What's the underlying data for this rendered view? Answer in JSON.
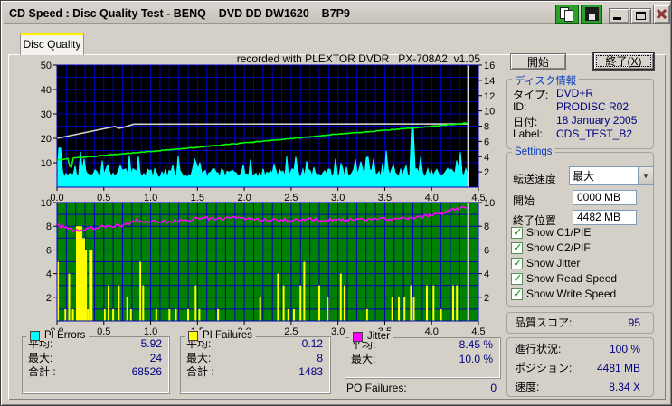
{
  "window": {
    "title": "CD Speed : Disc Quality Test - BENQ    DVD DD DW1620    B7P9",
    "icons": {
      "copy": "copy-pages-icon",
      "save": "floppy-save-icon",
      "minimize": "minimize-icon",
      "maximize": "maximize-icon",
      "close": "close-x-icon"
    }
  },
  "tab": {
    "label": "Disc Quality"
  },
  "buttons": {
    "start": "開始",
    "exit_pre": "終了(",
    "exit_key": "X",
    "exit_post": ")"
  },
  "disc_info": {
    "title": "ディスク情報",
    "rows": [
      {
        "label": "タイプ:",
        "value": "DVD+R"
      },
      {
        "label": "ID:",
        "value": "PRODISC R02"
      },
      {
        "label": "日付:",
        "value": "18 January 2005"
      },
      {
        "label": "Label:",
        "value": "CDS_TEST_B2"
      }
    ]
  },
  "settings": {
    "title": "Settings",
    "speed_label": "転送速度",
    "speed_value": "最大",
    "start_label": "開始",
    "start_value": "0000 MB",
    "end_label": "終了位置",
    "end_value": "4482 MB",
    "checkboxes": [
      {
        "label": "Show C1/PIE",
        "checked": true
      },
      {
        "label": "Show C2/PIF",
        "checked": true
      },
      {
        "label": "Show Jitter",
        "checked": true
      },
      {
        "label": "Show Read Speed",
        "checked": true
      },
      {
        "label": "Show Write Speed",
        "checked": true
      }
    ]
  },
  "quality": {
    "label": "品質スコア:",
    "value": "95"
  },
  "progress": {
    "rows": [
      {
        "label": "進行状況:",
        "value": "100 %"
      },
      {
        "label": "ポジション:",
        "value": "4481 MB"
      },
      {
        "label": "速度:",
        "value": "8.34 X"
      }
    ]
  },
  "stats": {
    "pi_errors": {
      "title": "PI Errors",
      "color": "#00FFFF",
      "rows": [
        [
          "平均:",
          "5.92"
        ],
        [
          "最大:",
          "24"
        ],
        [
          "合計 :",
          "68526"
        ]
      ]
    },
    "pi_failures": {
      "title": "PI Failures",
      "color": "#FFFF00",
      "rows": [
        [
          "平均:",
          "0.12"
        ],
        [
          "最大:",
          "8"
        ],
        [
          "合計 :",
          "1483"
        ]
      ]
    },
    "jitter": {
      "title": "Jitter",
      "color": "#FF00FF",
      "rows": [
        [
          "平均:",
          "8.45 %"
        ],
        [
          "最大:",
          "10.0 %"
        ]
      ]
    },
    "po_failures": {
      "label": "PO Failures:",
      "value": "0"
    }
  },
  "chart_data": [
    {
      "type": "area",
      "note": "recorded with PLEXTOR DVDR   PX-708A2  v1.05",
      "x": {
        "min": 0,
        "max": 4.5,
        "ticks": [
          "0.0",
          "0.5",
          "1.0",
          "1.5",
          "2.0",
          "2.5",
          "3.0",
          "3.5",
          "4.0",
          "4.5"
        ]
      },
      "y_left": {
        "min": 0,
        "max": 50,
        "ticks": [
          50,
          40,
          30,
          20,
          10
        ]
      },
      "y_right": {
        "min": 0,
        "max": 16,
        "ticks": [
          16,
          14,
          12,
          10,
          8,
          6,
          4,
          2
        ]
      },
      "bg_color": "#000000",
      "grid_color": "#0000BE",
      "position_marker_gb": 4.39,
      "marker_color": "#D8D8D8",
      "series": [
        {
          "name": "PI Errors",
          "style": "area",
          "color": "#00FFFF",
          "avg": 5.92,
          "max": 24,
          "base_range": [
            4.0,
            7.6
          ],
          "spikes": [
            [
              0.03,
              16
            ],
            [
              3.79,
              24
            ]
          ]
        },
        {
          "name": "Write Speed",
          "style": "line",
          "color": "#D0CFC8",
          "points": [
            [
              0,
              20
            ],
            [
              0.62,
              24.9
            ],
            [
              0.66,
              24.1
            ],
            [
              0.7,
              24.4
            ],
            [
              0.82,
              25.8
            ],
            [
              4.39,
              25.9
            ]
          ]
        },
        {
          "name": "Read Speed",
          "style": "line",
          "color": "#00FF00",
          "noise": 0.3,
          "points": [
            [
              0,
              11.2
            ],
            [
              0.1,
              11.5
            ],
            [
              0.13,
              11.8
            ],
            [
              0.145,
              2.2
            ],
            [
              0.16,
              11.9
            ],
            [
              1.0,
              14.6
            ],
            [
              2.0,
              18.1
            ],
            [
              3.0,
              21.7
            ],
            [
              4.0,
              24.9
            ],
            [
              4.39,
              26.3
            ]
          ]
        }
      ]
    },
    {
      "type": "bar",
      "x": {
        "min": 0,
        "max": 4.5,
        "ticks": [
          "0.0",
          "0.5",
          "1.0",
          "1.5",
          "2.0",
          "2.5",
          "3.0",
          "3.5",
          "4.0",
          "4.5"
        ]
      },
      "y_left": {
        "min": 0,
        "max": 10,
        "ticks": [
          10,
          8,
          6,
          4,
          2
        ]
      },
      "y_right": {
        "min": 0,
        "max": 10,
        "ticks": [
          10,
          8,
          6,
          4,
          2
        ]
      },
      "bg_color": "#008200",
      "grid_color": "#0000BE",
      "position_marker_gb": 4.39,
      "marker_color": "#C8C8C8",
      "bars": {
        "name": "PI Failures",
        "color": "#FFFF00",
        "avg": 0.12,
        "max": 8,
        "data": [
          [
            0.01,
            5
          ],
          [
            0.09,
            1
          ],
          [
            0.13,
            4
          ],
          [
            0.17,
            1
          ],
          [
            0.22,
            8
          ],
          [
            0.25,
            8
          ],
          [
            0.28,
            7
          ],
          [
            0.3,
            6
          ],
          [
            0.33,
            1
          ],
          [
            0.36,
            6
          ],
          [
            0.51,
            1
          ],
          [
            0.55,
            3
          ],
          [
            0.6,
            1
          ],
          [
            0.66,
            3
          ],
          [
            0.75,
            2
          ],
          [
            0.79,
            1
          ],
          [
            0.89,
            5
          ],
          [
            0.92,
            3
          ],
          [
            1.06,
            1
          ],
          [
            1.2,
            1
          ],
          [
            1.27,
            1
          ],
          [
            1.4,
            1
          ],
          [
            1.48,
            3
          ],
          [
            1.52,
            1
          ],
          [
            1.72,
            1
          ],
          [
            2.17,
            2
          ],
          [
            2.36,
            4
          ],
          [
            2.42,
            3
          ],
          [
            2.47,
            1
          ],
          [
            2.53,
            1
          ],
          [
            2.6,
            3
          ],
          [
            2.64,
            5
          ],
          [
            2.8,
            3
          ],
          [
            2.89,
            2
          ],
          [
            3.03,
            4
          ],
          [
            3.07,
            3
          ],
          [
            3.31,
            1
          ],
          [
            3.58,
            2
          ],
          [
            3.65,
            2
          ],
          [
            3.71,
            2
          ],
          [
            3.78,
            3
          ],
          [
            3.81,
            2
          ],
          [
            3.95,
            3
          ],
          [
            4.02,
            3
          ],
          [
            4.1,
            1
          ],
          [
            4.23,
            3
          ],
          [
            4.27,
            3
          ]
        ]
      },
      "line": {
        "name": "Jitter",
        "color": "#FF00FF",
        "avg_pct": 8.45,
        "max_pct": 10.0,
        "noise": 0.28,
        "points": [
          [
            0,
            8.1
          ],
          [
            0.08,
            7.9
          ],
          [
            0.18,
            7.65
          ],
          [
            0.28,
            7.7
          ],
          [
            0.4,
            7.9
          ],
          [
            0.55,
            8.0
          ],
          [
            0.7,
            8.1
          ],
          [
            0.85,
            8.5
          ],
          [
            1.0,
            8.4
          ],
          [
            1.2,
            8.4
          ],
          [
            1.4,
            8.5
          ],
          [
            1.5,
            8.7
          ],
          [
            1.7,
            8.6
          ],
          [
            1.9,
            8.7
          ],
          [
            2.1,
            8.6
          ],
          [
            2.4,
            8.5
          ],
          [
            2.7,
            8.6
          ],
          [
            3.0,
            8.5
          ],
          [
            3.3,
            8.6
          ],
          [
            3.6,
            8.6
          ],
          [
            3.8,
            8.7
          ],
          [
            3.95,
            8.9
          ],
          [
            4.1,
            9.1
          ],
          [
            4.25,
            9.4
          ],
          [
            4.35,
            9.6
          ],
          [
            4.39,
            9.4
          ]
        ]
      }
    }
  ]
}
